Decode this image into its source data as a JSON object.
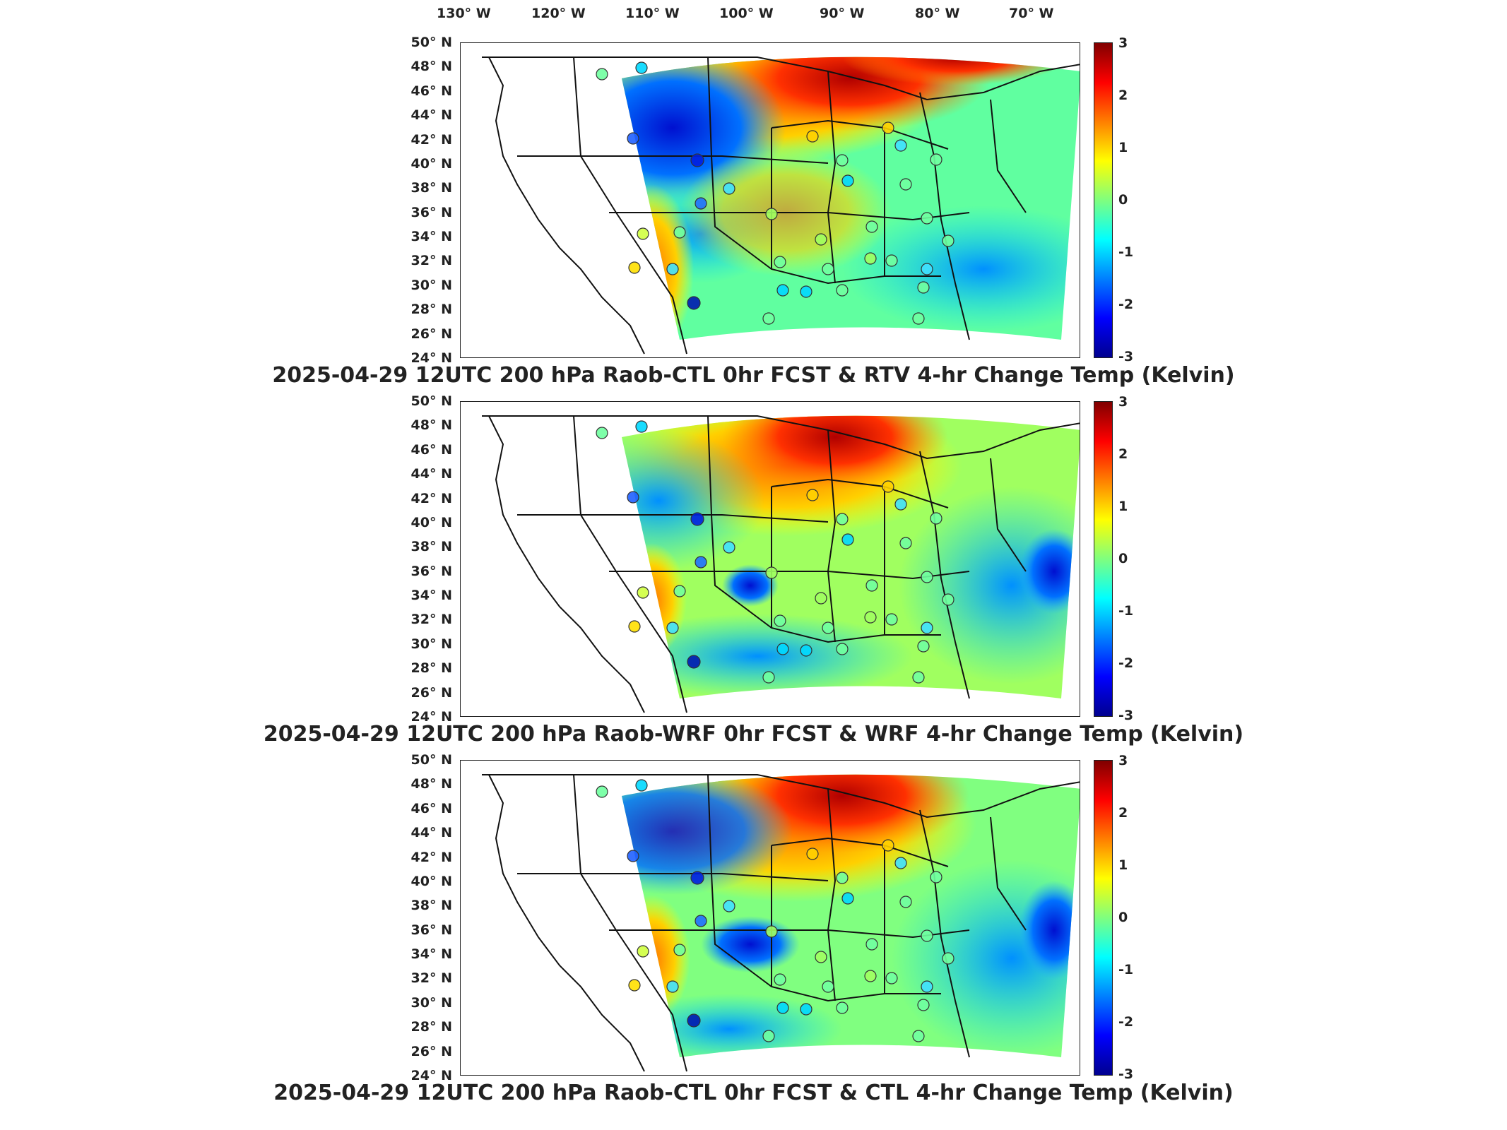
{
  "lon_labels": [
    "130° W",
    "120° W",
    "110° W",
    "100° W",
    "90° W",
    "80° W",
    "70° W"
  ],
  "lat_labels": [
    "50° N",
    "48° N",
    "46° N",
    "44° N",
    "42° N",
    "40° N",
    "38° N",
    "36° N",
    "34° N",
    "32° N",
    "30° N",
    "28° N",
    "26° N",
    "24° N"
  ],
  "colorbar_ticks": [
    "3",
    "2",
    "1",
    "0",
    "-1",
    "-2",
    "-3"
  ],
  "colors": {
    "cold": "#00008f",
    "cool": "#00ffff",
    "neutral": "#7fff7f",
    "warm": "#ffff00",
    "hot": "#800000"
  },
  "panels": [
    {
      "title": "2025-04-29 12UTC 200 hPa Raob-CTL 0hr FCST & RTV 4-hr Change Temp (Kelvin)"
    },
    {
      "title": "2025-04-29 12UTC 200 hPa Raob-WRF 0hr FCST & WRF 4-hr Change Temp (Kelvin)"
    },
    {
      "title": "2025-04-29 12UTC 200 hPa Raob-CTL 0hr FCST & CTL 4-hr Change Temp (Kelvin)"
    }
  ]
}
